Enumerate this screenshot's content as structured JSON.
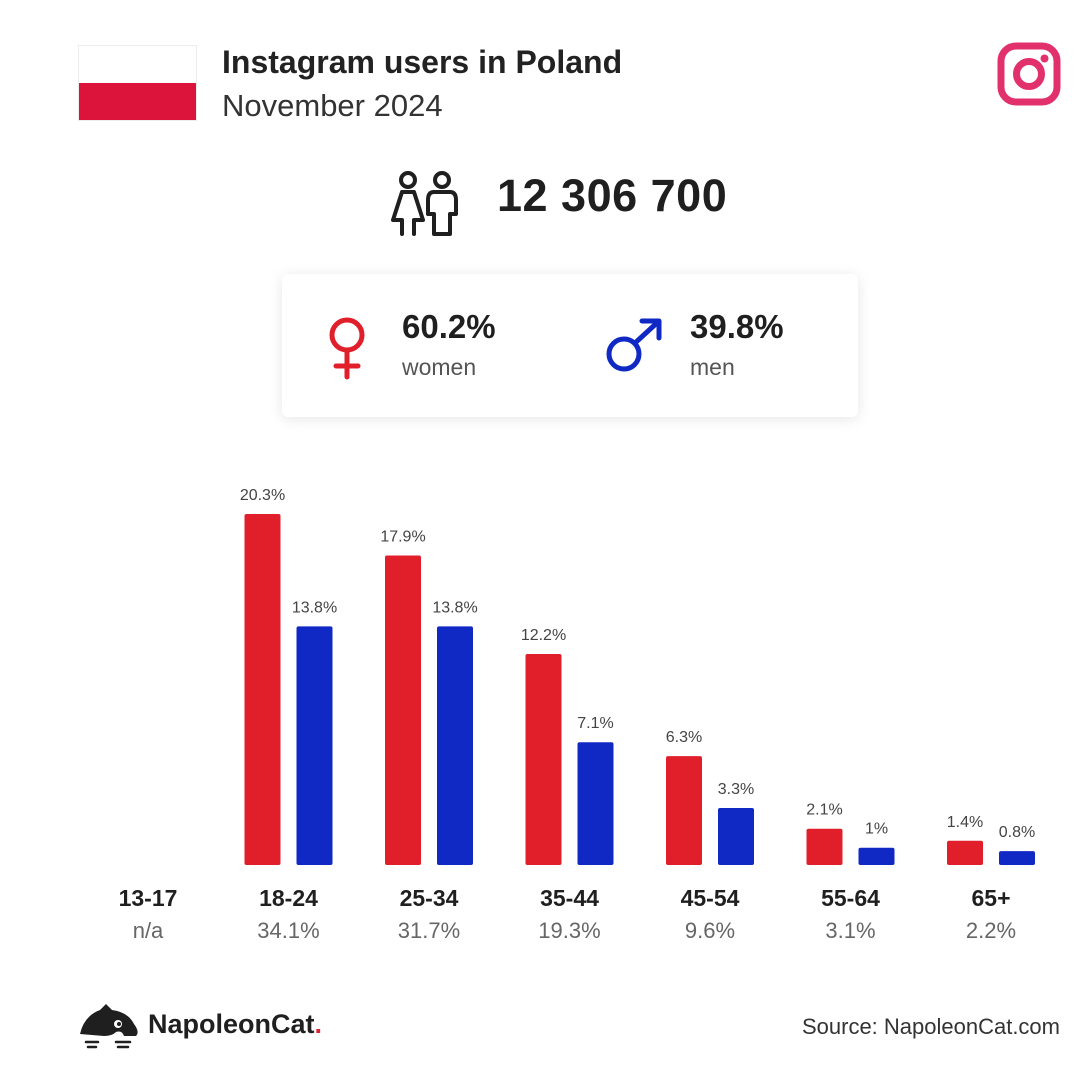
{
  "header": {
    "title": "Instagram users in Poland",
    "subtitle": "November 2024"
  },
  "total_users": "12 306 700",
  "gender": {
    "women_pct": "60.2%",
    "women_label": "women",
    "men_pct": "39.8%",
    "men_label": "men"
  },
  "colors": {
    "women": "#e01f2b",
    "men": "#1029c4",
    "flag_red": "#dc143c",
    "instagram": "#e1306c"
  },
  "chart_data": {
    "type": "bar",
    "categories": [
      "13-17",
      "18-24",
      "25-34",
      "35-44",
      "45-54",
      "55-64",
      "65+"
    ],
    "category_totals": [
      "n/a",
      "34.1%",
      "31.7%",
      "19.3%",
      "9.6%",
      "3.1%",
      "2.2%"
    ],
    "series": [
      {
        "name": "women",
        "values": [
          null,
          20.3,
          17.9,
          12.2,
          6.3,
          2.1,
          1.4
        ],
        "labels": [
          "",
          "20.3%",
          "17.9%",
          "12.2%",
          "6.3%",
          "2.1%",
          "1.4%"
        ]
      },
      {
        "name": "men",
        "values": [
          null,
          13.8,
          13.8,
          7.1,
          3.3,
          1.0,
          0.8
        ],
        "labels": [
          "",
          "13.8%",
          "13.8%",
          "7.1%",
          "3.3%",
          "1%",
          "0.8%"
        ]
      }
    ],
    "ylim": [
      0,
      20.3
    ],
    "grid": false,
    "legend": "none"
  },
  "footer": {
    "brand": "NapoleonCat",
    "brand_dot": ".",
    "source": "Source: NapoleonCat.com"
  }
}
